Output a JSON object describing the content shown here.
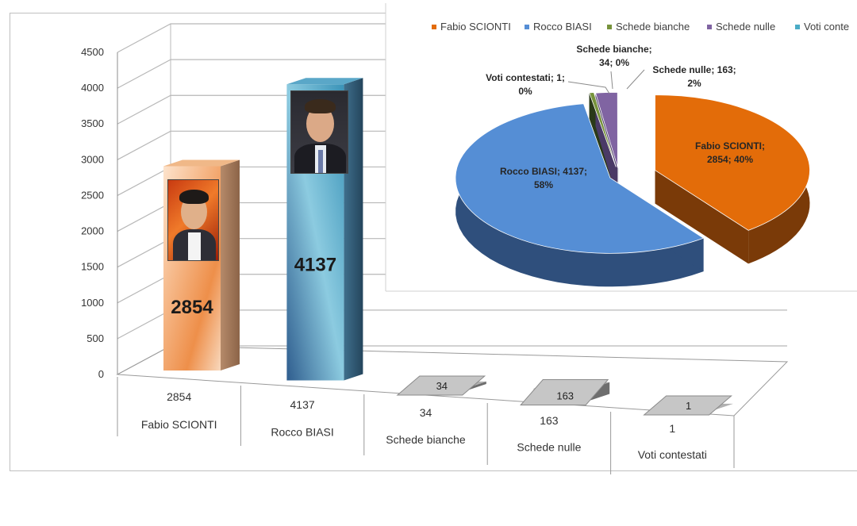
{
  "chart_data": [
    {
      "type": "bar",
      "categories": [
        "Fabio SCIONTI",
        "Rocco BIASI",
        "Schede bianche",
        "Schede nulle",
        "Voti contestati"
      ],
      "values": [
        2854,
        4137,
        34,
        163,
        1
      ],
      "ylim": [
        0,
        4500
      ],
      "yticks": [
        "0",
        "500",
        "1000",
        "1500",
        "2000",
        "2500",
        "3000",
        "3500",
        "4000",
        "4500"
      ],
      "data_labels": [
        "2854",
        "4137",
        "34",
        "163",
        "1"
      ],
      "table_values": [
        "2854",
        "4137",
        "34",
        "163",
        "1"
      ],
      "grid": true,
      "colors": [
        "#f0a868",
        "#6fb3cf",
        "#9a9a9a",
        "#9a9a9a",
        "#9a9a9a"
      ]
    },
    {
      "type": "pie",
      "labels": [
        "Fabio SCIONTI",
        "Rocco BIASI",
        "Schede bianche",
        "Schede nulle",
        "Voti contestati"
      ],
      "values": [
        2854,
        4137,
        34,
        163,
        1
      ],
      "percents": [
        40,
        58,
        0,
        2,
        0
      ],
      "colors": [
        "#e36c09",
        "#558ed5",
        "#77933c",
        "#8064a2",
        "#4bacc6"
      ],
      "legend": [
        "Fabio SCIONTI",
        "Rocco BIASI",
        "Schede bianche",
        "Schede nulle",
        "Voti conte"
      ],
      "legend_position": "top",
      "slice_labels": [
        [
          "Fabio SCIONTI;",
          "2854; 40%"
        ],
        [
          "Rocco BIASI; 4137;",
          "58%"
        ],
        [
          "Schede bianche;",
          "34; 0%"
        ],
        [
          "Schede nulle; 163;",
          "2%"
        ],
        [
          "Voti contestati; 1;",
          "0%"
        ]
      ]
    }
  ]
}
